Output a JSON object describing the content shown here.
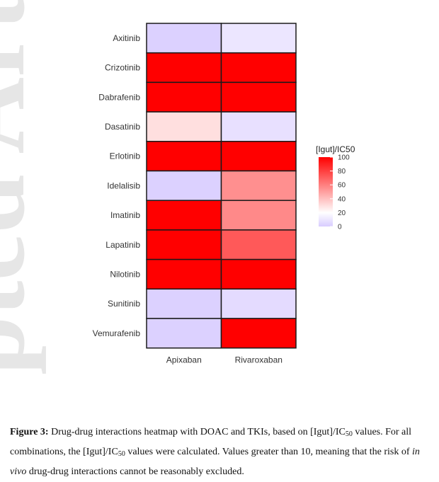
{
  "chart_data": {
    "type": "heatmap",
    "rows": [
      "Axitinib",
      "Crizotinib",
      "Dabrafenib",
      "Dasatinib",
      "Erlotinib",
      "Idelalisib",
      "Imatinib",
      "Lapatinib",
      "Nilotinib",
      "Sunitinib",
      "Vemurafenib"
    ],
    "columns": [
      "Apixaban",
      "Rivaroxaban"
    ],
    "values": [
      [
        2,
        10
      ],
      [
        100,
        100
      ],
      [
        100,
        100
      ],
      [
        30,
        8
      ],
      [
        100,
        100
      ],
      [
        2,
        55
      ],
      [
        100,
        57
      ],
      [
        100,
        72
      ],
      [
        100,
        100
      ],
      [
        2,
        6
      ],
      [
        2,
        100
      ]
    ],
    "legend_title": "[Igut]/IC50",
    "legend_ticks": [
      100,
      80,
      60,
      40,
      20,
      0
    ],
    "scale_range": [
      0,
      100
    ],
    "colors": {
      "low": "#d8ccff",
      "mid": "#ffffff",
      "high": "#ff0000"
    },
    "cell_border": "#1a1a1a"
  },
  "watermark": "pted Article",
  "caption": {
    "label": "Figure 3:",
    "t1": " Drug-drug interactions heatmap with DOAC and TKIs, based on [Igut]/IC",
    "sub1": "50",
    "t2": " values. For all combinations, the [Igut]/IC",
    "sub2": "50",
    "t3": " values were calculated. Values greater than 10, meaning that the risk of ",
    "italic": "in vivo",
    "t4": " drug-drug interactions cannot be reasonably excluded."
  }
}
